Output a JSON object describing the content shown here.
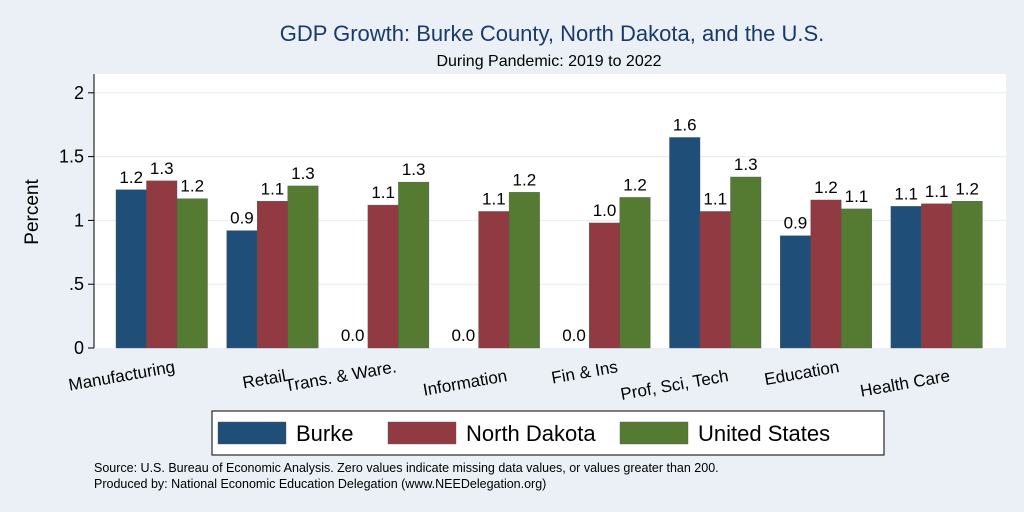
{
  "chart_data": {
    "type": "bar",
    "title": "GDP Growth: Burke County, North Dakota, and the U.S.",
    "subtitle": "During Pandemic: 2019 to 2022",
    "xlabel": "",
    "ylabel": "Percent",
    "ylim": [
      0,
      2.15
    ],
    "yticks": [
      0,
      0.5,
      1,
      1.5,
      2
    ],
    "ytick_labels": [
      "0",
      ".5",
      "1",
      "1.5",
      "2"
    ],
    "grid": true,
    "legend_position": "bottom",
    "categories": [
      "Manufacturing",
      "Retail",
      "Trans. & Ware.",
      "Information",
      "Fin & Ins",
      "Prof, Sci, Tech",
      "Education",
      "Health Care"
    ],
    "series": [
      {
        "name": "Burke",
        "color": "#1f4e79",
        "values": [
          1.24,
          0.92,
          0.0,
          0.0,
          0.0,
          1.65,
          0.88,
          1.11
        ],
        "labels": [
          "1.2",
          "0.9",
          "0.0",
          "0.0",
          "0.0",
          "1.6",
          "0.9",
          "1.1"
        ]
      },
      {
        "name": "North Dakota",
        "color": "#923a42",
        "values": [
          1.31,
          1.15,
          1.12,
          1.07,
          0.98,
          1.07,
          1.16,
          1.13
        ],
        "labels": [
          "1.3",
          "1.1",
          "1.1",
          "1.1",
          "1.0",
          "1.1",
          "1.2",
          "1.1"
        ]
      },
      {
        "name": "United States",
        "color": "#557a32",
        "values": [
          1.17,
          1.27,
          1.3,
          1.22,
          1.18,
          1.34,
          1.09,
          1.15
        ],
        "labels": [
          "1.2",
          "1.3",
          "1.3",
          "1.2",
          "1.2",
          "1.3",
          "1.1",
          "1.2"
        ]
      }
    ]
  },
  "footer": {
    "source": "Source: U.S. Bureau of Economic Analysis. Zero values indicate missing data values, or values greater than 200.",
    "producer": "Produced by: National Economic Education Delegation (www.NEEDelegation.org)"
  }
}
